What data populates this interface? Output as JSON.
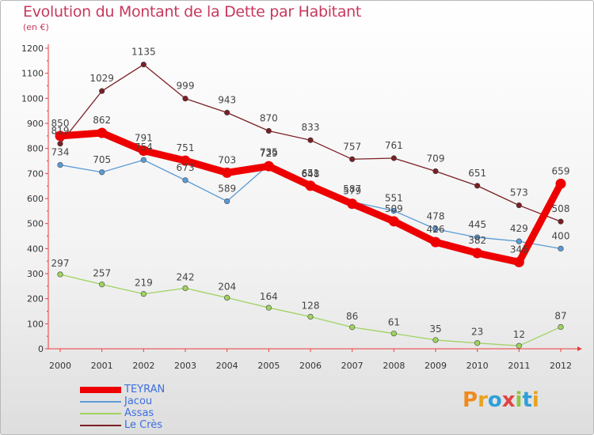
{
  "header": {
    "title": "Evolution du Montant de la Dette par Habitant",
    "subtitle": "(en €)"
  },
  "logo": {
    "text": "Proxiti",
    "colors": [
      "#f08a1c",
      "#e8a31e",
      "#2f9fd8",
      "#e04444",
      "#8cc640",
      "#2f9fd8",
      "#e8a31e"
    ]
  },
  "chart_data": {
    "type": "line",
    "x": [
      "2000",
      "2001",
      "2002",
      "2003",
      "2004",
      "2005",
      "2006",
      "2007",
      "2008",
      "2009",
      "2010",
      "2011",
      "2012"
    ],
    "ylim": [
      0,
      1200
    ],
    "yticks": [
      0,
      100,
      200,
      300,
      400,
      500,
      600,
      700,
      800,
      900,
      1000,
      1100,
      1200
    ],
    "grid": false,
    "legend_position": "bottom-left",
    "series": [
      {
        "name": "Le Crès",
        "color": "#7a1f24",
        "values": [
          819,
          1029,
          1135,
          999,
          943,
          870,
          833,
          757,
          761,
          709,
          651,
          573,
          508
        ]
      },
      {
        "name": "Jacou",
        "color": "#5b9bd5",
        "values": [
          734,
          705,
          754,
          673,
          589,
          735,
          648,
          587,
          551,
          478,
          445,
          429,
          400
        ]
      },
      {
        "name": "Assas",
        "color": "#9fd35f",
        "values": [
          297,
          257,
          219,
          242,
          204,
          164,
          128,
          86,
          61,
          35,
          23,
          12,
          87
        ]
      },
      {
        "name": "TEYRAN",
        "color": "#ee0000",
        "values": [
          850,
          862,
          791,
          751,
          703,
          729,
          651,
          579,
          509,
          426,
          382,
          346,
          659
        ]
      }
    ]
  },
  "legend": [
    {
      "label": "TEYRAN",
      "color": "#ee0000",
      "width": 8
    },
    {
      "label": "Jacou",
      "color": "#5b9bd5",
      "width": 1.5
    },
    {
      "label": "Assas",
      "color": "#9fd35f",
      "width": 1.5
    },
    {
      "label": "Le Crès",
      "color": "#7a1f24",
      "width": 1.5
    }
  ]
}
